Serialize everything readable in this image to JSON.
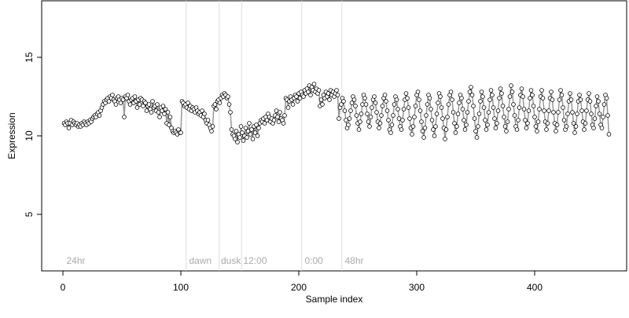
{
  "chart_data": {
    "type": "scatter",
    "xlabel": "Sample index",
    "ylabel": "Expression",
    "xlim": [
      -18,
      478
    ],
    "ylim": [
      1.4,
      18.6
    ],
    "xticks": [
      0,
      100,
      200,
      300,
      400
    ],
    "yticks": [
      5,
      10,
      15
    ],
    "line_color": "#999999",
    "point_fill": "#ffffff",
    "point_stroke": "#000000",
    "vline_color": "#dddddd",
    "vlines": [
      104.5,
      132.5,
      151.5,
      202.5,
      236.5
    ],
    "annotations": [
      {
        "x": 3,
        "y": 2.0,
        "text": "24hr"
      },
      {
        "x": 107,
        "y": 2.0,
        "text": "dawn"
      },
      {
        "x": 134,
        "y": 2.0,
        "text": "dusk"
      },
      {
        "x": 153,
        "y": 2.0,
        "text": "12:00"
      },
      {
        "x": 205,
        "y": 2.0,
        "text": "0:00"
      },
      {
        "x": 239,
        "y": 2.0,
        "text": "48hr"
      }
    ],
    "values": [
      10.8,
      10.7,
      10.9,
      10.8,
      10.5,
      10.8,
      11.0,
      10.7,
      10.9,
      10.8,
      10.7,
      10.8,
      10.6,
      10.7,
      10.6,
      10.8,
      10.7,
      10.9,
      10.8,
      10.7,
      10.9,
      10.8,
      11.0,
      10.9,
      11.1,
      11.2,
      11.3,
      11.2,
      11.4,
      11.5,
      11.3,
      11.6,
      11.8,
      12.0,
      12.2,
      12.1,
      12.3,
      12.4,
      12.2,
      12.5,
      12.4,
      12.6,
      12.3,
      12.2,
      12.0,
      12.4,
      12.5,
      12.3,
      12.1,
      12.4,
      12.3,
      11.2,
      12.5,
      12.4,
      12.6,
      12.2,
      12.0,
      12.3,
      12.4,
      12.1,
      12.5,
      12.2,
      11.8,
      12.3,
      12.0,
      12.4,
      12.3,
      11.9,
      12.2,
      12.1,
      11.6,
      11.9,
      12.0,
      11.7,
      11.5,
      12.2,
      11.8,
      11.9,
      11.6,
      12.0,
      11.5,
      11.2,
      11.8,
      11.6,
      11.9,
      11.4,
      11.7,
      10.8,
      11.5,
      10.7,
      11.2,
      10.5,
      10.3,
      10.2,
      10.3,
      10.2,
      10.1,
      10.4,
      10.2,
      10.2,
      12.2,
      12.1,
      11.9,
      12.0,
      11.8,
      12.1,
      11.7,
      11.9,
      11.6,
      11.8,
      11.7,
      11.5,
      11.8,
      11.6,
      11.4,
      11.5,
      11.3,
      11.6,
      11.2,
      11.4,
      11.0,
      10.8,
      11.0,
      10.7,
      10.5,
      10.3,
      10.6,
      11.9,
      12.0,
      11.7,
      12.2,
      12.3,
      12.1,
      12.4,
      12.6,
      12.5,
      12.7,
      12.6,
      12.4,
      12.5,
      12.0,
      11.5,
      10.4,
      10.1,
      10.0,
      9.8,
      10.3,
      9.6,
      10.1,
      9.9,
      10.6,
      10.2,
      9.7,
      10.0,
      10.5,
      9.9,
      10.3,
      10.8,
      10.1,
      10.4,
      9.8,
      10.6,
      10.2,
      10.7,
      10.0,
      10.5,
      10.8,
      11.0,
      10.9,
      11.1,
      10.8,
      11.2,
      11.0,
      11.4,
      11.2,
      10.9,
      11.1,
      10.8,
      11.0,
      11.3,
      11.6,
      11.2,
      10.9,
      11.5,
      11.1,
      11.0,
      10.8,
      11.3,
      12.4,
      12.3,
      11.8,
      12.2,
      12.5,
      12.3,
      12.0,
      12.4,
      12.6,
      12.5,
      12.2,
      12.7,
      12.4,
      12.8,
      12.6,
      12.5,
      12.9,
      12.7,
      13.0,
      12.8,
      13.2,
      12.6,
      13.1,
      12.9,
      13.3,
      12.8,
      13.0,
      12.7,
      12.9,
      11.9,
      12.3,
      12.0,
      12.6,
      12.4,
      12.8,
      12.5,
      12.7,
      12.3,
      12.9,
      12.6,
      12.8,
      12.5,
      12.7,
      12.9,
      12.6,
      11.1,
      11.8,
      12.0,
      12.4,
      12.2,
      11.6,
      11.0,
      10.5,
      10.7,
      11.1,
      11.6,
      12.1,
      12.5,
      12.3,
      11.9,
      11.3,
      10.8,
      10.4,
      10.9,
      11.4,
      12.0,
      12.6,
      12.4,
      12.0,
      11.4,
      10.9,
      10.6,
      11.2,
      11.8,
      12.3,
      12.5,
      12.1,
      11.5,
      10.9,
      10.5,
      10.8,
      11.3,
      11.9,
      12.4,
      12.6,
      12.2,
      11.6,
      11.0,
      10.4,
      10.2,
      10.7,
      11.3,
      12.0,
      12.5,
      12.3,
      11.7,
      11.1,
      10.6,
      10.4,
      11.0,
      11.7,
      12.3,
      12.7,
      12.4,
      11.8,
      11.1,
      10.5,
      10.1,
      10.6,
      11.2,
      11.9,
      12.6,
      12.8,
      12.3,
      11.6,
      10.9,
      10.3,
      9.9,
      10.5,
      11.3,
      12.0,
      12.6,
      12.4,
      11.7,
      11.0,
      10.4,
      10.0,
      10.6,
      11.4,
      12.1,
      12.7,
      12.5,
      11.8,
      11.1,
      10.5,
      9.8,
      10.4,
      11.2,
      12.0,
      12.6,
      12.8,
      12.3,
      11.5,
      10.8,
      10.2,
      10.6,
      11.4,
      12.1,
      12.6,
      12.4,
      11.7,
      11.0,
      10.4,
      10.7,
      11.5,
      12.2,
      12.8,
      13.1,
      12.6,
      11.9,
      11.1,
      10.3,
      9.9,
      10.6,
      11.4,
      12.2,
      12.8,
      12.5,
      11.8,
      11.0,
      10.4,
      10.7,
      11.5,
      12.3,
      12.9,
      12.6,
      11.8,
      11.1,
      10.5,
      10.8,
      11.6,
      12.4,
      13.0,
      12.7,
      11.9,
      11.2,
      10.6,
      10.3,
      10.9,
      11.7,
      12.5,
      13.2,
      12.8,
      12.0,
      11.3,
      10.6,
      10.4,
      11.0,
      11.8,
      12.6,
      13.0,
      12.5,
      11.7,
      11.0,
      10.5,
      10.8,
      11.6,
      12.4,
      12.9,
      12.6,
      11.9,
      11.2,
      10.6,
      10.3,
      10.9,
      11.7,
      12.5,
      12.9,
      12.4,
      11.6,
      10.9,
      10.4,
      10.8,
      11.6,
      12.4,
      12.8,
      12.3,
      11.5,
      10.8,
      10.3,
      10.7,
      11.5,
      12.3,
      12.9,
      12.6,
      11.8,
      11.0,
      10.4,
      10.6,
      11.4,
      12.2,
      12.7,
      12.3,
      11.5,
      10.8,
      10.2,
      10.6,
      11.4,
      12.2,
      12.6,
      12.3,
      11.6,
      10.9,
      10.4,
      10.8,
      11.6,
      12.3,
      12.7,
      12.2,
      11.4,
      10.7,
      10.5,
      11.1,
      11.9,
      12.5,
      12.2,
      11.4,
      10.7,
      10.5,
      11.2,
      12.0,
      12.6,
      12.4,
      11.3,
      10.1
    ]
  }
}
